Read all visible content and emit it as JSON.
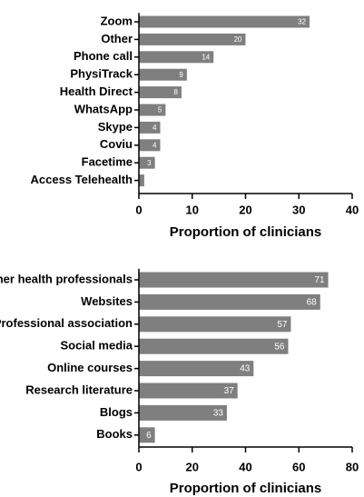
{
  "chart_data": [
    {
      "type": "barh",
      "categories": [
        "Zoom",
        "Other",
        "Phone call",
        "PhysiTrack",
        "Health Direct",
        "WhatsApp",
        "Skype",
        "Coviu",
        "Facetime",
        "Access Telehealth"
      ],
      "values": [
        32,
        20,
        14,
        9,
        8,
        5,
        4,
        4,
        3,
        1
      ],
      "value_labels": [
        "32",
        "20",
        "14",
        "9",
        "8",
        "5",
        "4",
        "4",
        "3",
        null
      ],
      "color": "#7f7f7f",
      "xlabel": "Proportion of clinicians",
      "xlim": [
        0,
        40
      ],
      "xticks": [
        0,
        10,
        20,
        30,
        40
      ]
    },
    {
      "type": "barh",
      "categories": [
        "Other health professionals",
        "Websites",
        "Professional association",
        "Social media",
        "Online courses",
        "Research literature",
        "Blogs",
        "Books"
      ],
      "values": [
        71,
        68,
        57,
        56,
        43,
        37,
        33,
        6
      ],
      "value_labels": [
        "71",
        "68",
        "57",
        "56",
        "43",
        "37",
        "33",
        "6"
      ],
      "color": "#7f7f7f",
      "xlabel": "Proportion of clinicians",
      "xlim": [
        0,
        80
      ],
      "xticks": [
        0,
        20,
        40,
        60,
        80
      ]
    }
  ]
}
